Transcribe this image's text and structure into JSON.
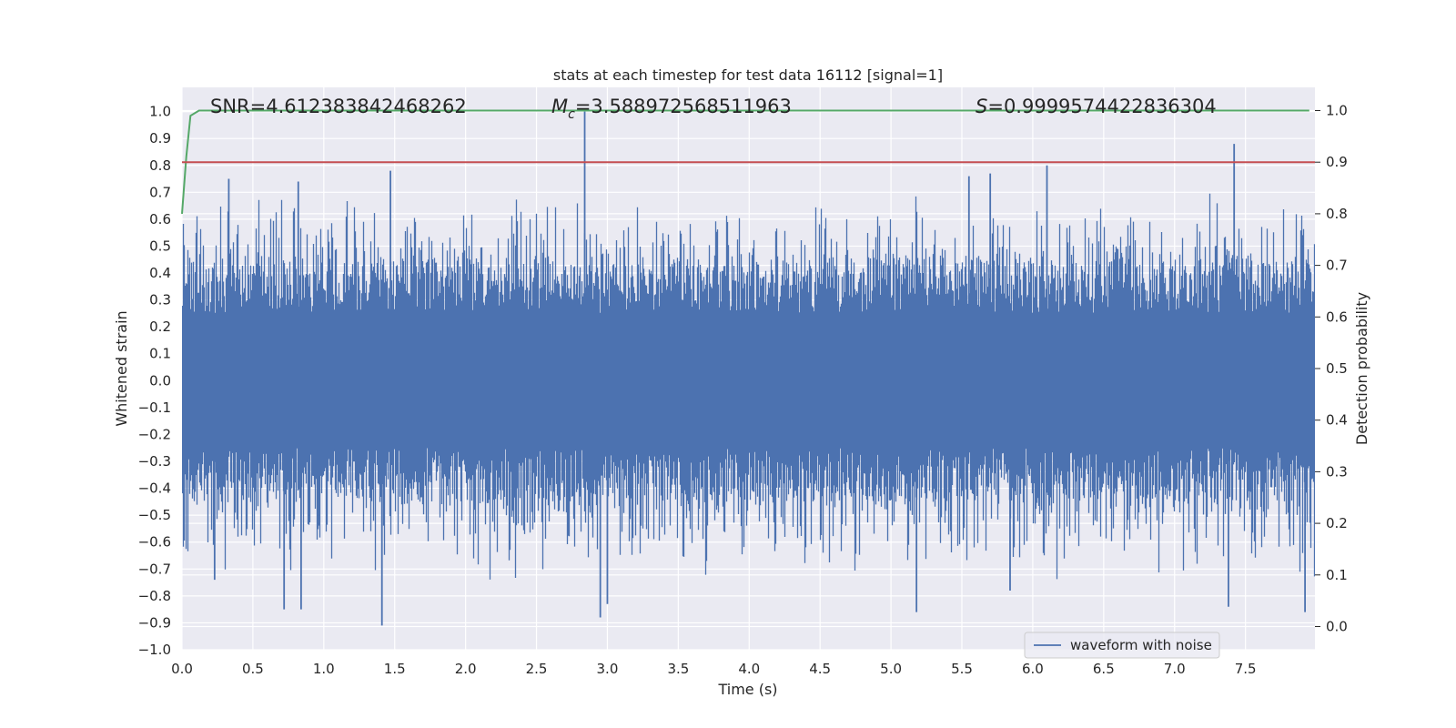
{
  "chart_data": {
    "type": "line",
    "title": "stats at each timestep for test data 16112 [signal=1]",
    "xlabel": "Time (s)",
    "ylabel": "Whitened strain",
    "y2label": "Detection probability",
    "xlim": [
      0.0,
      7.99
    ],
    "ylim": [
      -1.0,
      1.09
    ],
    "y2lim": [
      -0.045,
      1.045
    ],
    "xticks": [
      "0.0",
      "0.5",
      "1.0",
      "1.5",
      "2.0",
      "2.5",
      "3.0",
      "3.5",
      "4.0",
      "4.5",
      "5.0",
      "5.5",
      "6.0",
      "6.5",
      "7.0",
      "7.5"
    ],
    "yticks": [
      "1.0",
      "0.9",
      "0.8",
      "0.7",
      "0.6",
      "0.5",
      "0.4",
      "0.3",
      "0.2",
      "0.1",
      "0.0",
      "-0.1",
      "-0.2",
      "-0.3",
      "-0.4",
      "-0.5",
      "-0.6",
      "-0.7",
      "-0.8",
      "-0.9",
      "-1.0"
    ],
    "y2ticks": [
      "1.0",
      "0.9",
      "0.8",
      "0.7",
      "0.6",
      "0.5",
      "0.4",
      "0.3",
      "0.2",
      "0.1",
      "0.0"
    ],
    "annotations": {
      "snr": "SNR=4.612383842468262",
      "mc_symbol": "M",
      "mc_sub": "c",
      "mc_value": "=3.588972568511963",
      "s_symbol": "S",
      "s_value": "=0.9999574422836304"
    },
    "legend": {
      "label": "waveform with noise",
      "location": "lower-right"
    },
    "colors": {
      "waveform": "#4c72b0",
      "probability": "#55a868",
      "threshold": "#c44e52",
      "background": "#eaeaf2",
      "grid": "#ffffff"
    },
    "series": [
      {
        "name": "waveform with noise",
        "axis": "left",
        "noise_envelope": {
          "core_amplitude": 0.2,
          "typical_peak": 0.45,
          "duration_s": 7.99
        },
        "peaks": [
          {
            "t": 0.33,
            "v": 0.75
          },
          {
            "t": 0.82,
            "v": 0.74
          },
          {
            "t": 1.47,
            "v": 0.78
          },
          {
            "t": 2.84,
            "v": 1.0
          },
          {
            "t": 5.55,
            "v": 0.76
          },
          {
            "t": 5.7,
            "v": 0.77
          },
          {
            "t": 6.1,
            "v": 0.8
          },
          {
            "t": 7.42,
            "v": 0.88
          },
          {
            "t": 0.23,
            "v": -0.74
          },
          {
            "t": 0.72,
            "v": -0.85
          },
          {
            "t": 0.84,
            "v": -0.85
          },
          {
            "t": 1.41,
            "v": -0.91
          },
          {
            "t": 2.95,
            "v": -0.88
          },
          {
            "t": 3.0,
            "v": -0.83
          },
          {
            "t": 5.18,
            "v": -0.86
          },
          {
            "t": 5.84,
            "v": -0.78
          },
          {
            "t": 7.38,
            "v": -0.84
          },
          {
            "t": 7.92,
            "v": -0.86
          }
        ]
      },
      {
        "name": "detection probability",
        "axis": "right",
        "x": [
          0.0,
          0.03,
          0.06,
          0.12,
          7.95
        ],
        "values": [
          0.8,
          0.91,
          0.99,
          1.0,
          1.0
        ]
      },
      {
        "name": "threshold",
        "axis": "right",
        "x": [
          0.0,
          7.99
        ],
        "values": [
          0.9,
          0.9
        ]
      }
    ]
  }
}
